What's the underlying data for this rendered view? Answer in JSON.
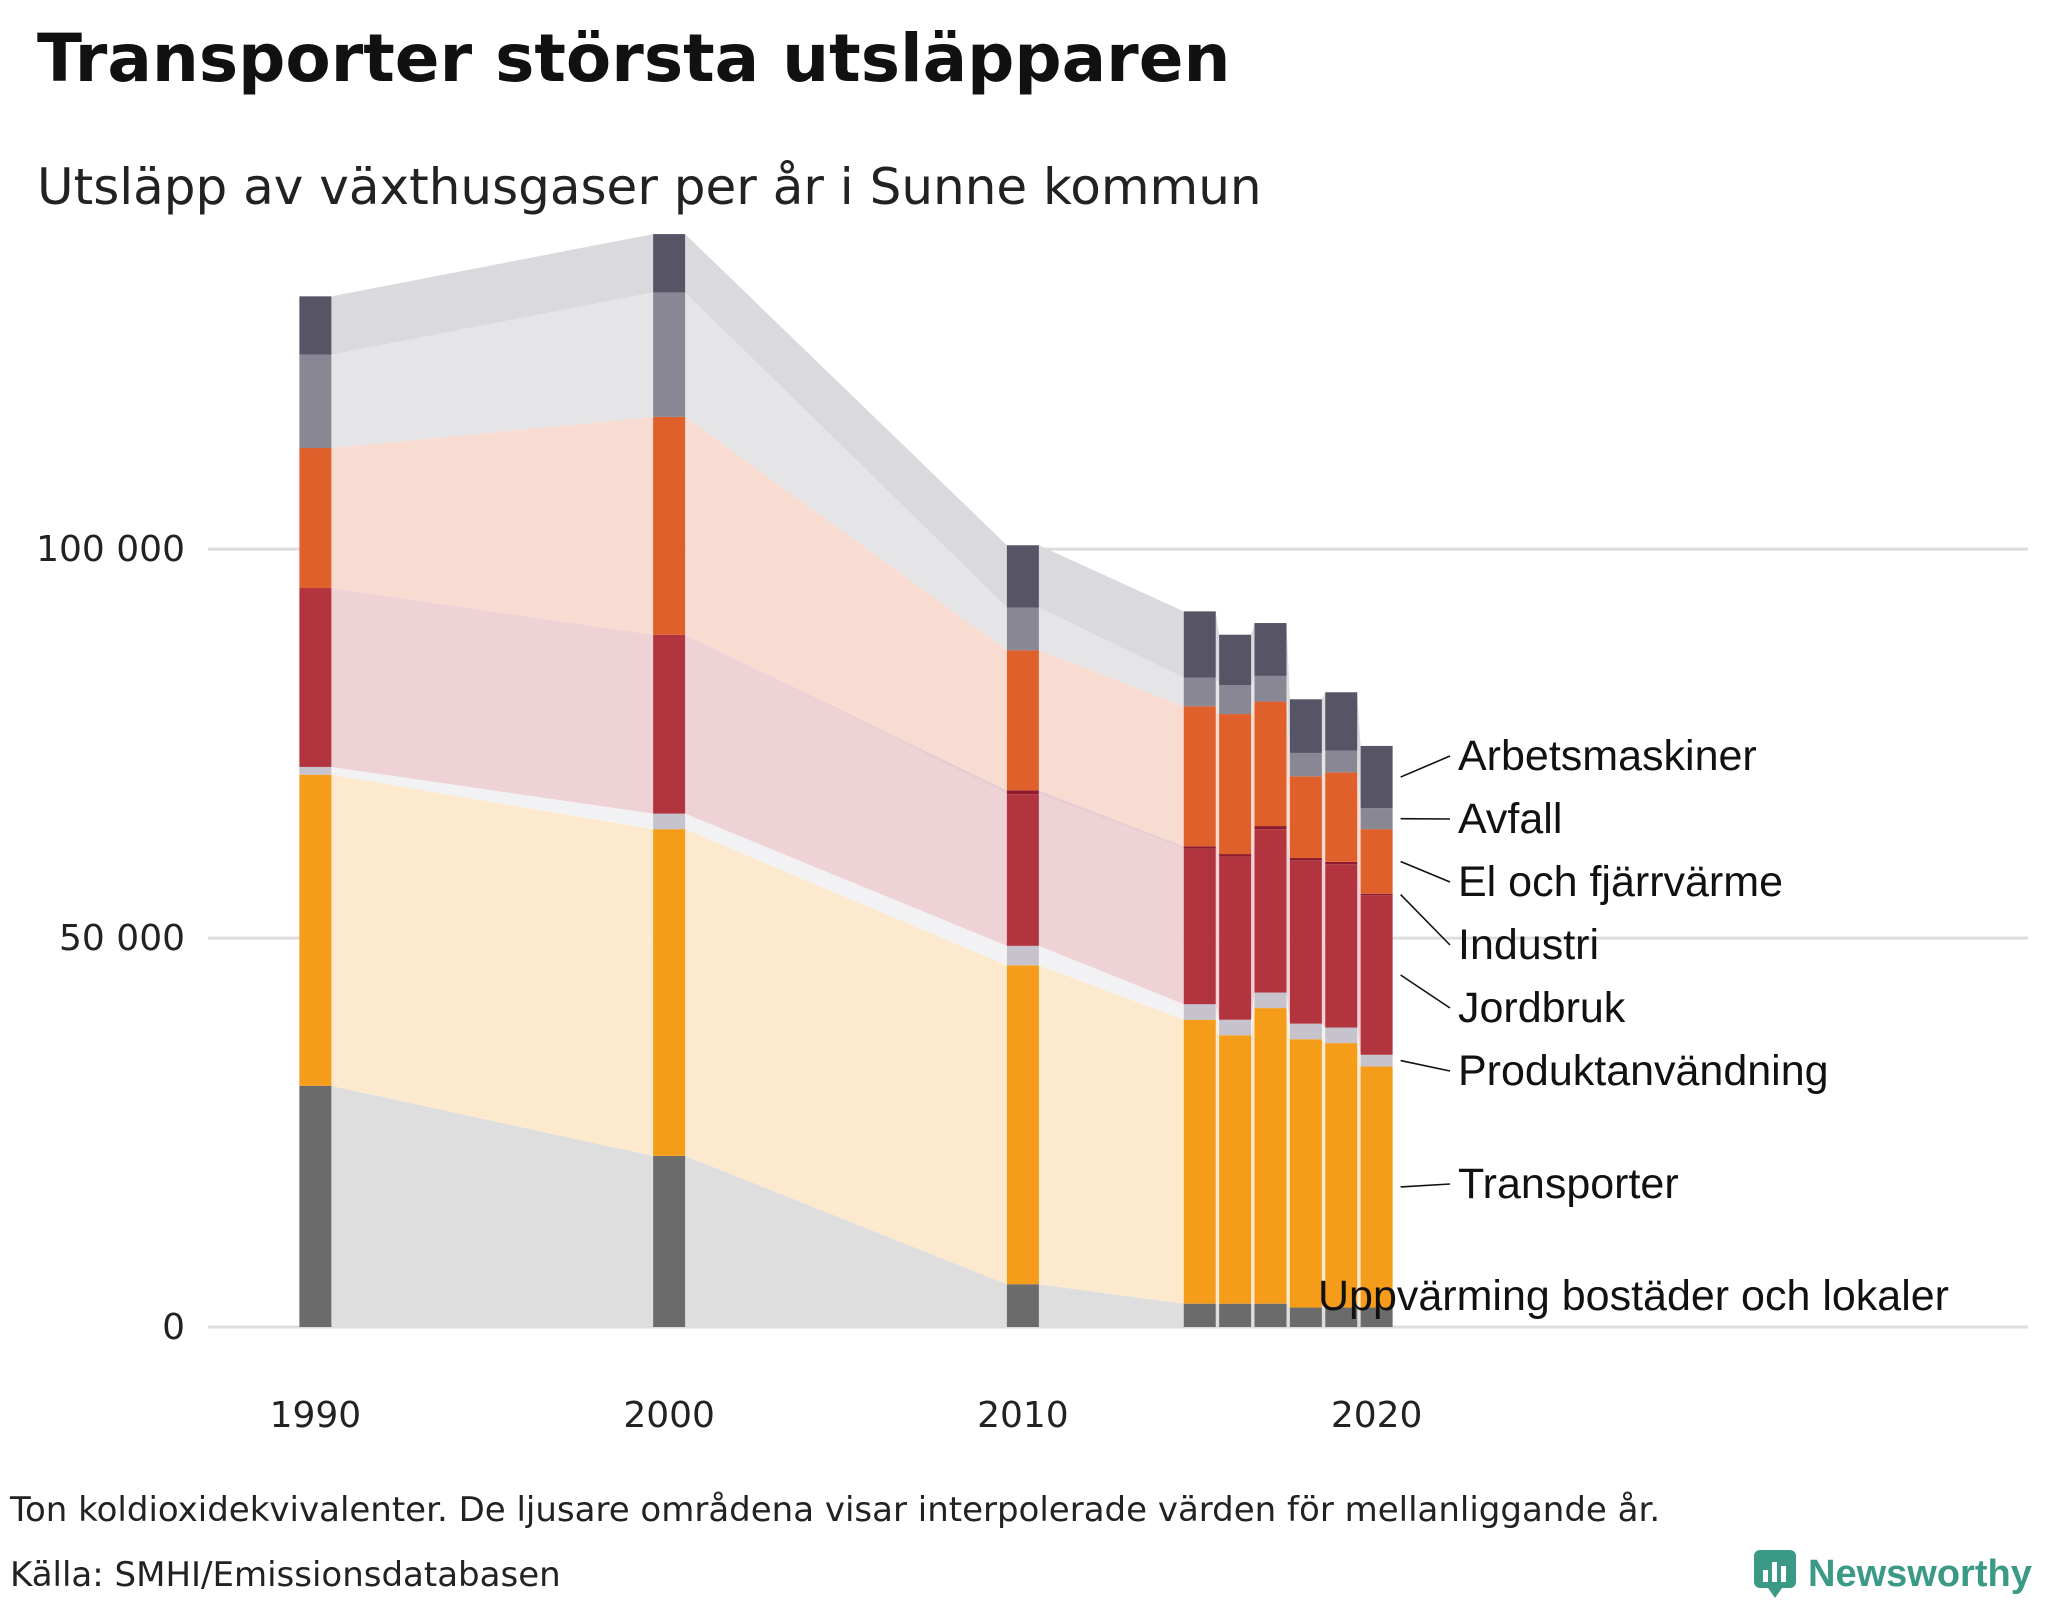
{
  "title": "Transporter största utsläpparen",
  "subtitle": "Utsläpp av växthusgaser per år i Sunne kommun",
  "note": "Ton koldioxidekvivalenter. De ljusare områdena visar interpolerade värden för mellanliggande år.",
  "source": "Källa: SMHI/Emissionsdatabasen",
  "brand": "Newsworthy",
  "colors": {
    "Uppvärming bostäder och lokaler": "#6b6b6b",
    "Transporter": "#f59c1a",
    "Produktanvändning": "#c6c3cc",
    "Jordbruk": "#b2343f",
    "Industri": "#8e1b2e",
    "El och fjärrvärme": "#e0602c",
    "Avfall": "#8a8795",
    "Arbetsmaskiner": "#575466",
    "brand": "#3a9a86"
  },
  "chart_data": {
    "type": "bar",
    "stacked": true,
    "title": "Transporter största utsläpparen",
    "subtitle": "Utsläpp av växthusgaser per år i Sunne kommun",
    "ylabel": "Ton koldioxidekvivalenter",
    "ylim": [
      0,
      140000
    ],
    "yticks": [
      0,
      50000,
      100000
    ],
    "ytick_labels": [
      "0",
      "50 000",
      "100 000"
    ],
    "xlim": [
      1989,
      2021
    ],
    "xticks": [
      1990,
      2000,
      2010,
      2020
    ],
    "xtick_labels": [
      "1990",
      "2000",
      "2010",
      "2020"
    ],
    "grid": true,
    "years": [
      1990,
      2000,
      2010,
      2015,
      2016,
      2017,
      2018,
      2019,
      2020
    ],
    "interpolated_areas": true,
    "series": [
      {
        "name": "Uppvärming bostäder och lokaler",
        "values": [
          31000,
          22000,
          5500,
          3000,
          3000,
          3000,
          2500,
          2500,
          2500
        ]
      },
      {
        "name": "Transporter",
        "values": [
          40000,
          42000,
          41000,
          36500,
          34500,
          38000,
          34500,
          34000,
          31000
        ]
      },
      {
        "name": "Produktanvändning",
        "values": [
          1000,
          2000,
          2500,
          2000,
          2000,
          2000,
          2000,
          2000,
          1500
        ]
      },
      {
        "name": "Jordbruk",
        "values": [
          23000,
          23000,
          19500,
          20000,
          21000,
          21000,
          21000,
          21000,
          20500
        ]
      },
      {
        "name": "Industri",
        "values": [
          0,
          0,
          500,
          300,
          300,
          400,
          300,
          300,
          200
        ]
      },
      {
        "name": "El och fjärrvärme",
        "values": [
          18000,
          28000,
          18000,
          18000,
          18000,
          16000,
          10500,
          11500,
          8300
        ]
      },
      {
        "name": "Avfall",
        "values": [
          12000,
          16000,
          5500,
          3700,
          3700,
          3300,
          3000,
          2800,
          2700
        ]
      },
      {
        "name": "Arbetsmaskiner",
        "values": [
          7500,
          7500,
          8000,
          8500,
          6500,
          6800,
          6900,
          7500,
          8000
        ]
      }
    ]
  }
}
